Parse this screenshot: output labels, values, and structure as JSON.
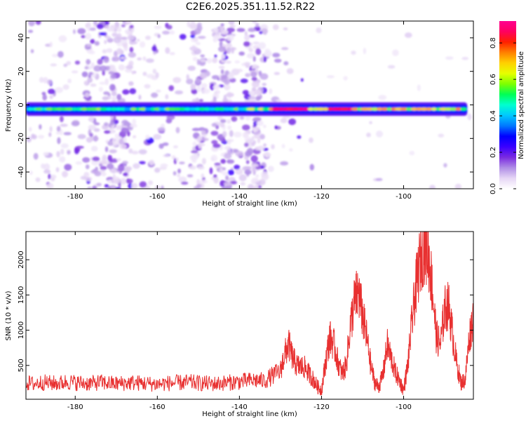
{
  "figure_title": "C2E6.2025.351.11.52.R22",
  "chart_data": [
    {
      "type": "heatmap",
      "title": "C2E6.2025.351.11.52.R22",
      "xlabel": "Height of straight line (km)",
      "ylabel": "Frequency (Hz)",
      "xlim": [
        -192,
        -83
      ],
      "ylim": [
        -50,
        50
      ],
      "x_ticks": [
        -180,
        -160,
        -140,
        -120,
        -100
      ],
      "y_ticks": [
        -40,
        -20,
        0,
        20,
        40
      ],
      "x_tick_labels": [
        "-180",
        "-160",
        "-140",
        "-120",
        "-100"
      ],
      "y_tick_labels": [
        "-40",
        "-20",
        "0",
        "20",
        "40"
      ],
      "colorbar": {
        "label": "Normalized spectral amplitude",
        "range": [
          0,
          0.92
        ],
        "ticks": [
          0,
          0.2,
          0.4,
          0.6,
          0.8
        ],
        "tick_labels": [
          "0.0",
          "0.2",
          "0.4",
          "0.6",
          "0.8"
        ],
        "colors": [
          "#ffffff",
          "#e6d6f5",
          "#b08ee6",
          "#7a2be0",
          "#3a00ff",
          "#0000ff",
          "#0078ff",
          "#00c8ff",
          "#00ffd0",
          "#00ff55",
          "#7dff00",
          "#e6ff00",
          "#ffd000",
          "#ff8000",
          "#ff2000",
          "#ff0060",
          "#ff0090"
        ]
      },
      "baseline_frequency_hz": -2.5,
      "intense_segments_km": [
        [
          -132,
          -123
        ],
        [
          -119,
          -112
        ]
      ],
      "scattered_columns_km": [
        -176,
        -172,
        -170,
        -167,
        -150,
        -145,
        -143,
        -137,
        -135
      ]
    },
    {
      "type": "line",
      "xlabel": "Height of straight line (km)",
      "ylabel": "SNR (10 * v/v)",
      "xlim": [
        -192,
        -83
      ],
      "ylim": [
        20,
        2400
      ],
      "x_ticks": [
        -180,
        -160,
        -140,
        -120,
        -100
      ],
      "y_ticks": [
        500,
        1000,
        1500,
        2000
      ],
      "x_tick_labels": [
        "-180",
        "-160",
        "-140",
        "-120",
        "-100"
      ],
      "y_tick_labels": [
        "500",
        "1000",
        "1500",
        "2000"
      ],
      "series": [
        {
          "name": "SNR",
          "color": "#e83030",
          "x": [
            -192,
            -190,
            -188,
            -186,
            -184,
            -182,
            -180,
            -178,
            -176,
            -174,
            -172,
            -170,
            -168,
            -166,
            -164,
            -162,
            -160,
            -158,
            -156,
            -154,
            -152,
            -150,
            -148,
            -146,
            -144,
            -142,
            -140,
            -138,
            -136,
            -134,
            -132,
            -130,
            -129,
            -128,
            -127,
            -126,
            -125,
            -124,
            -123,
            -122,
            -121,
            -120,
            -119,
            -118,
            -117,
            -116,
            -115,
            -114,
            -113,
            -112,
            -111,
            -110,
            -109,
            -108,
            -107,
            -106,
            -105,
            -104,
            -103,
            -102,
            -101,
            -100,
            -99,
            -98,
            -97,
            -96,
            -95,
            -94,
            -93,
            -92,
            -91,
            -90,
            -89,
            -88,
            -87,
            -86,
            -85,
            -84,
            -83
          ],
          "values": [
            250,
            240,
            260,
            250,
            245,
            270,
            255,
            250,
            245,
            260,
            250,
            240,
            250,
            255,
            250,
            240,
            235,
            245,
            250,
            255,
            260,
            250,
            245,
            240,
            250,
            260,
            270,
            280,
            290,
            280,
            350,
            420,
            650,
            800,
            600,
            500,
            480,
            470,
            380,
            300,
            200,
            150,
            550,
            900,
            800,
            550,
            380,
            500,
            1050,
            1400,
            1550,
            1200,
            900,
            500,
            250,
            200,
            380,
            800,
            600,
            400,
            280,
            150,
            500,
            1100,
            1600,
            2000,
            2200,
            2100,
            1600,
            900,
            800,
            1300,
            1350,
            900,
            500,
            250,
            300,
            900,
            1200
          ]
        }
      ]
    }
  ]
}
